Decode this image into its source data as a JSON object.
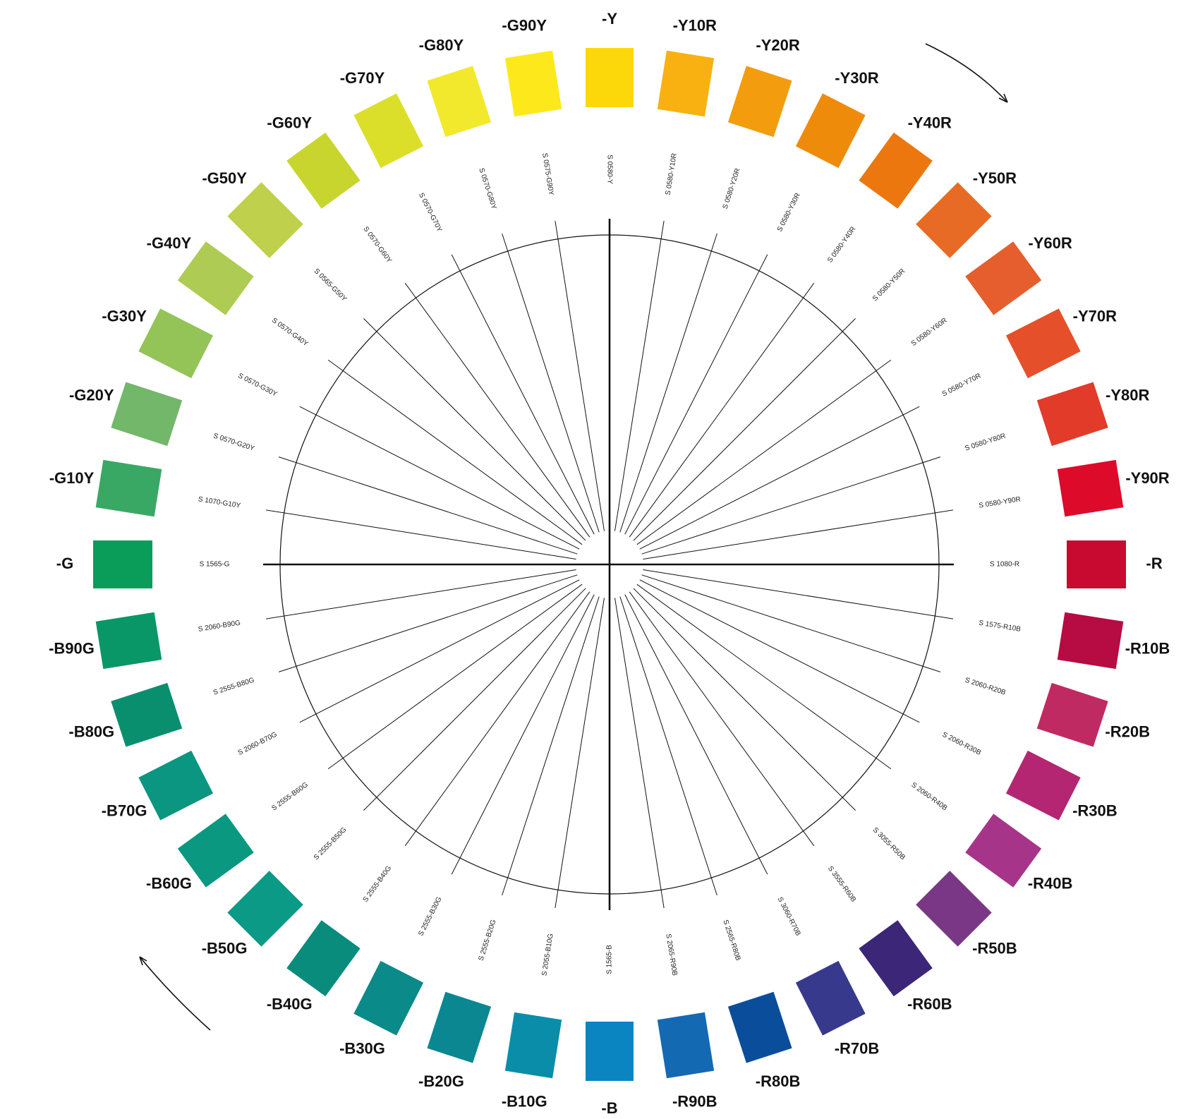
{
  "hues": [
    {
      "hue": "-Y",
      "code": "S 0580-Y",
      "color": "#FCD80A"
    },
    {
      "hue": "-Y10R",
      "code": "S 0580-Y10R",
      "color": "#F8B111"
    },
    {
      "hue": "-Y20R",
      "code": "S 0580-Y20R",
      "color": "#F39C0E"
    },
    {
      "hue": "-Y30R",
      "code": "S 0580-Y30R",
      "color": "#EF8B0A"
    },
    {
      "hue": "-Y40R",
      "code": "S 0580-Y40R",
      "color": "#EB770E"
    },
    {
      "hue": "-Y50R",
      "code": "S 0580-Y50R",
      "color": "#E86B25"
    },
    {
      "hue": "-Y60R",
      "code": "S 0580-Y60R",
      "color": "#E65E2D"
    },
    {
      "hue": "-Y70R",
      "code": "S 0580-Y70R",
      "color": "#E5502B"
    },
    {
      "hue": "-Y80R",
      "code": "S 0580-Y80R",
      "color": "#E23B2A"
    },
    {
      "hue": "-Y90R",
      "code": "S 0580-Y90R",
      "color": "#DE0A2A"
    },
    {
      "hue": "-R",
      "code": "S 1080-R",
      "color": "#C90A30"
    },
    {
      "hue": "-R10B",
      "code": "S 1575-R10B",
      "color": "#B70B43"
    },
    {
      "hue": "-R20B",
      "code": "S 2060-R20B",
      "color": "#C02A63"
    },
    {
      "hue": "-R30B",
      "code": "S 2060-R30B",
      "color": "#B42671"
    },
    {
      "hue": "-R40B",
      "code": "S 2060-R40B",
      "color": "#A6358A"
    },
    {
      "hue": "-R50B",
      "code": "S 3055-R50B",
      "color": "#7A3786"
    },
    {
      "hue": "-R60B",
      "code": "S 3555-R60B",
      "color": "#3C2677"
    },
    {
      "hue": "-R70B",
      "code": "S 3060-R70B",
      "color": "#373A8C"
    },
    {
      "hue": "-R80B",
      "code": "S 2565-R80B",
      "color": "#0A4E9B"
    },
    {
      "hue": "-R90B",
      "code": "S 2065-R90B",
      "color": "#1469B3"
    },
    {
      "hue": "-B",
      "code": "S 1565-B",
      "color": "#0A85C2"
    },
    {
      "hue": "-B10G",
      "code": "S 2055-B10G",
      "color": "#0A8DA8"
    },
    {
      "hue": "-B20G",
      "code": "S 2555-B20G",
      "color": "#0A8791"
    },
    {
      "hue": "-B30G",
      "code": "S 2555-B30G",
      "color": "#0A8A89"
    },
    {
      "hue": "-B40G",
      "code": "S 2555-B40G",
      "color": "#0A8C7C"
    },
    {
      "hue": "-B50G",
      "code": "S 2555-B50G",
      "color": "#0A9A85"
    },
    {
      "hue": "-B60G",
      "code": "S 2555-B60G",
      "color": "#0A9880"
    },
    {
      "hue": "-B70G",
      "code": "S 2060-B70G",
      "color": "#0A9680"
    },
    {
      "hue": "-B80G",
      "code": "S 2555-B80G",
      "color": "#0A8F6E"
    },
    {
      "hue": "-B90G",
      "code": "S 2060-B90G",
      "color": "#0A9767"
    },
    {
      "hue": "-G",
      "code": "S 1565-G",
      "color": "#0A9D5A"
    },
    {
      "hue": "-G10Y",
      "code": "S 1070-G10Y",
      "color": "#3AA865"
    },
    {
      "hue": "-G20Y",
      "code": "S 0570-G20Y",
      "color": "#73B76A"
    },
    {
      "hue": "-G30Y",
      "code": "S 0570-G30Y",
      "color": "#94C457"
    },
    {
      "hue": "-G40Y",
      "code": "S 0570-G40Y",
      "color": "#AECB53"
    },
    {
      "hue": "-G50Y",
      "code": "S 0565-G50Y",
      "color": "#BFD04C"
    },
    {
      "hue": "-G60Y",
      "code": "S 0570-G60Y",
      "color": "#C8D52E"
    },
    {
      "hue": "-G70Y",
      "code": "S 0570-G70Y",
      "color": "#DCDF2A"
    },
    {
      "hue": "-G80Y",
      "code": "S 0570-G80Y",
      "color": "#F3E92C"
    },
    {
      "hue": "-G90Y",
      "code": "S 0575-G90Y",
      "color": "#FDE91B"
    }
  ],
  "line_color": "#111111",
  "arrow_icon": "clockwise-arrow-icon"
}
